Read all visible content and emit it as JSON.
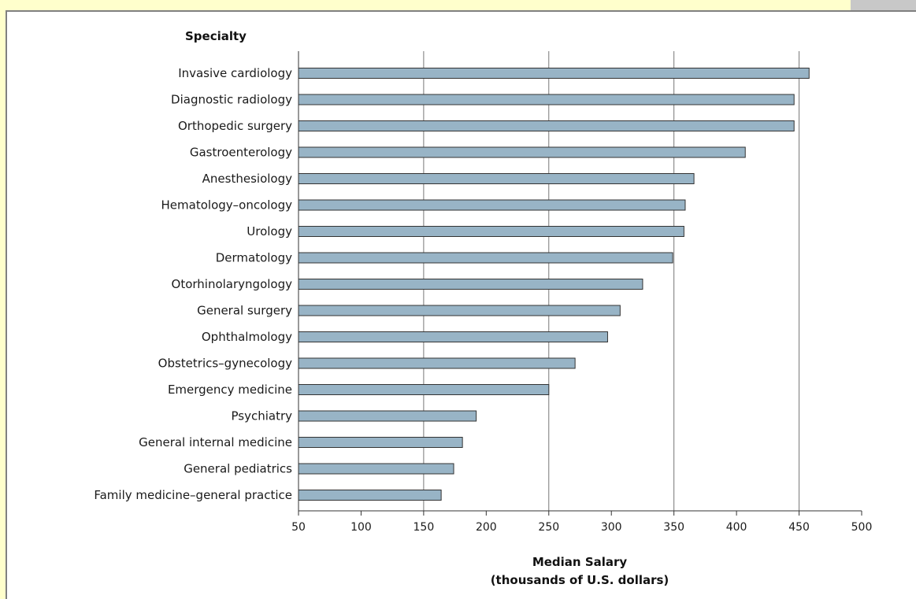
{
  "chart_data": {
    "type": "bar",
    "orientation": "horizontal",
    "title": "",
    "category_axis_label": "Specialty",
    "xlabel_line1": "Median Salary",
    "xlabel_line2": "(thousands of U.S. dollars)",
    "xlim": [
      50,
      500
    ],
    "xticks": [
      50,
      100,
      150,
      200,
      250,
      300,
      350,
      400,
      450,
      500
    ],
    "gridlines": [
      150,
      250,
      350,
      450
    ],
    "bar_color": "#98b4c6",
    "bar_edge_color": "#333333",
    "categories": [
      "Invasive cardiology",
      "Diagnostic radiology",
      "Orthopedic surgery",
      "Gastroenterology",
      "Anesthesiology",
      "Hematology–oncology",
      "Urology",
      "Dermatology",
      "Otorhinolaryngology",
      "General surgery",
      "Ophthalmology",
      "Obstetrics–gynecology",
      "Emergency medicine",
      "Psychiatry",
      "General internal medicine",
      "General pediatrics",
      "Family medicine–general practice"
    ],
    "values": [
      458,
      446,
      446,
      407,
      366,
      359,
      358,
      349,
      325,
      307,
      297,
      271,
      250,
      192,
      181,
      174,
      164
    ]
  },
  "colors": {
    "page_background": "#ffffcc",
    "panel_border": "#808080",
    "corner_block": "#c8c8c8",
    "gridline": "#777777"
  }
}
